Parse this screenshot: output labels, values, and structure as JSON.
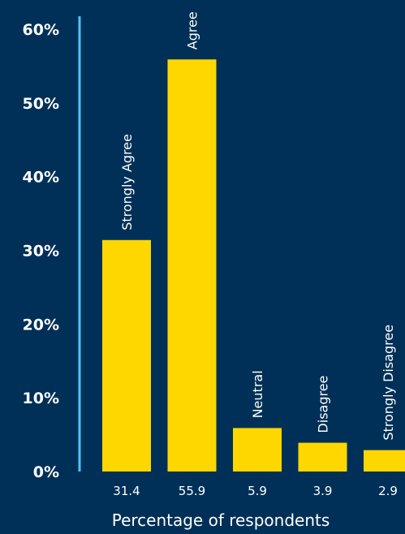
{
  "chart_data": {
    "type": "bar",
    "categories": [
      "Strongly Agree",
      "Agree",
      "Neutral",
      "Disagree",
      "Strongly Disagree"
    ],
    "values": [
      31.4,
      55.9,
      5.9,
      3.9,
      2.9
    ],
    "value_labels": [
      "31.4",
      "55.9",
      "5.9",
      "3.9",
      "2.9"
    ],
    "title": "",
    "xlabel": "Percentage of respondents",
    "ylabel": "",
    "ylim": [
      0,
      60
    ],
    "yticks": [
      "0%",
      "10%",
      "20%",
      "30%",
      "40%",
      "50%",
      "60%"
    ],
    "grid": false,
    "legend": "none",
    "category_label_placement": "rotated above bars",
    "value_label_placement": "below axis"
  },
  "colors": {
    "background": "#003057",
    "bar": "#FFD700",
    "axis_line": "#4FC3F7",
    "text": "#FFFFFF"
  }
}
